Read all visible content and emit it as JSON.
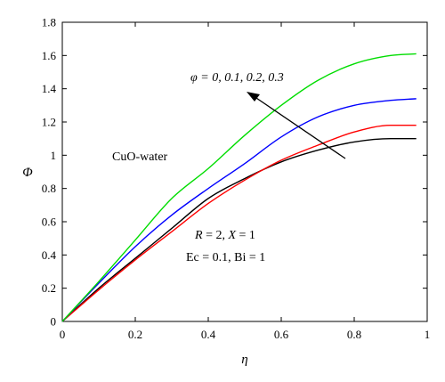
{
  "chart_data": {
    "type": "line",
    "title": "",
    "xlabel": "η",
    "ylabel": "Φ",
    "xlim": [
      0,
      1
    ],
    "ylim": [
      0,
      1.8
    ],
    "xticks": [
      0,
      0.2,
      0.4,
      0.6,
      0.8,
      1
    ],
    "xtick_labels": [
      "0",
      "0.2",
      "0.4",
      "0.6",
      "0.8",
      "1"
    ],
    "yticks": [
      0,
      0.2,
      0.4,
      0.6,
      0.8,
      1,
      1.2,
      1.4,
      1.6,
      1.8
    ],
    "ytick_labels": [
      "0",
      "0.2",
      "0.4",
      "0.6",
      "0.8",
      "1",
      "1.2",
      "1.4",
      "1.6",
      "1.8"
    ],
    "grid": false,
    "legend": "none",
    "x": [
      0,
      0.1,
      0.2,
      0.3,
      0.4,
      0.5,
      0.6,
      0.7,
      0.8,
      0.9,
      0.97
    ],
    "series": [
      {
        "color": "#000000",
        "values": [
          0,
          0.2,
          0.38,
          0.56,
          0.74,
          0.86,
          0.96,
          1.03,
          1.08,
          1.1,
          1.1
        ]
      },
      {
        "color": "#ff0000",
        "values": [
          0,
          0.19,
          0.37,
          0.54,
          0.71,
          0.85,
          0.97,
          1.06,
          1.14,
          1.18,
          1.18
        ]
      },
      {
        "color": "#0000ff",
        "values": [
          0,
          0.23,
          0.45,
          0.64,
          0.8,
          0.95,
          1.11,
          1.23,
          1.3,
          1.33,
          1.34
        ]
      },
      {
        "color": "#00dd00",
        "values": [
          0,
          0.24,
          0.49,
          0.74,
          0.92,
          1.12,
          1.3,
          1.45,
          1.55,
          1.6,
          1.61
        ]
      }
    ],
    "annotations": {
      "phi_label": "φ = 0, 0.1, 0.2, 0.3",
      "fluid_label": "CuO-water",
      "params_line1_R": "R",
      "params_line1_mid": " = 2, ",
      "params_line1_X": "X",
      "params_line1_end": " = 1",
      "params_line2": "Ec = 0.1, Bi = 1"
    }
  }
}
